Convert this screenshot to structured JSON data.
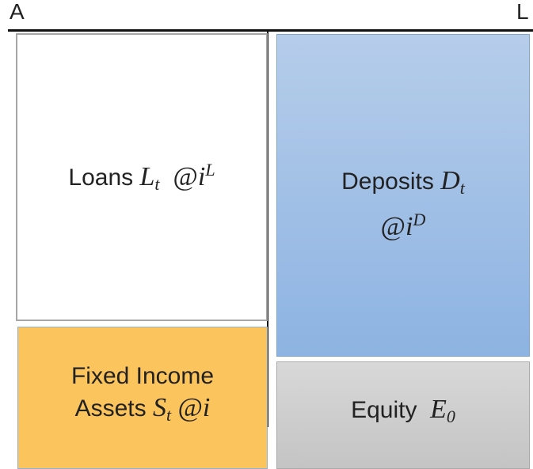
{
  "header": {
    "left": "A",
    "right": "L"
  },
  "boxes": [
    {
      "lines": [
        [
          {
            "text": "Loans "
          },
          {
            "var": "L",
            "sub": "t"
          },
          {
            "math": "  @"
          },
          {
            "var": "i",
            "sup": "L"
          }
        ]
      ]
    },
    {
      "lines": [
        [
          {
            "text": "Deposits "
          },
          {
            "var": "D",
            "sub": "t"
          }
        ],
        [
          {
            "math": "@"
          },
          {
            "var": "i",
            "sup": "D"
          }
        ]
      ]
    },
    {
      "lines": [
        [
          {
            "text": "Fixed Income"
          }
        ],
        [
          {
            "text": "Assets "
          },
          {
            "var": "S",
            "sub": "t"
          },
          {
            "math": " @"
          },
          {
            "var": "i"
          }
        ]
      ]
    },
    {
      "lines": [
        [
          {
            "text": "Equity  "
          },
          {
            "var": "E",
            "sub": "0"
          }
        ]
      ]
    }
  ]
}
